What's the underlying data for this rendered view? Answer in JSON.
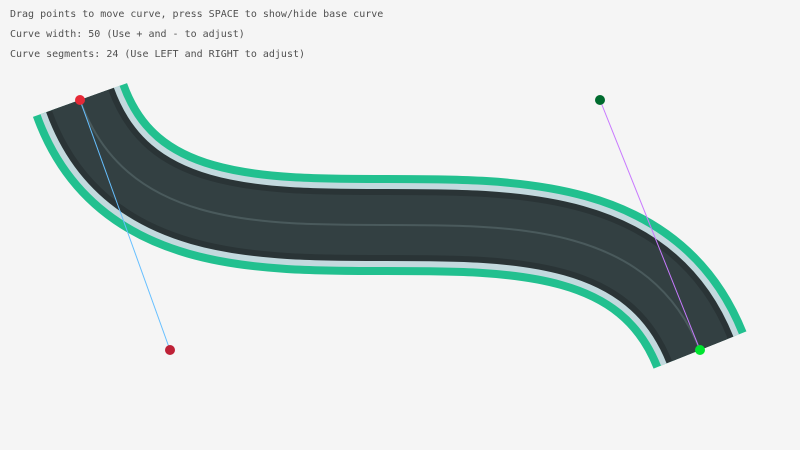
{
  "instructions": [
    "Drag points to move curve, press SPACE to show/hide base curve",
    "Curve width: 50 (Use + and - to adjust)",
    "Curve segments: 24 (Use LEFT and RIGHT to adjust)"
  ],
  "curve": {
    "width": 50,
    "segments": 24,
    "start": [
      80,
      100
    ],
    "start_tangent": [
      170,
      350
    ],
    "end_tangent": [
      600,
      100
    ],
    "end": [
      700,
      350
    ]
  },
  "colors": {
    "background": "#f5f5f5",
    "road_border": "#22c08f",
    "road_stripe": "#c3d9de",
    "road_edge": "#2a3436",
    "road_asphalt": "#334042",
    "lane_line": "#4a5a5c",
    "start_point": "#e62937",
    "start_tangent_point": "#be2137",
    "end_tangent_point": "#006b2e",
    "end_point": "#00e430",
    "start_line": "#66bfff",
    "end_line": "#c87aff"
  }
}
